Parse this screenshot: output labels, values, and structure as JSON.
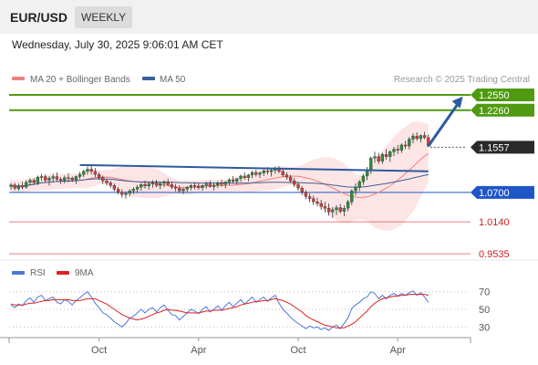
{
  "header": {
    "symbol": "EUR/USD",
    "period": "WEEKLY",
    "datetime": "Wednesday, July 30, 2025 9:06:01 AM CET",
    "credit": "Research © 2025 Trading Central"
  },
  "legend": {
    "ma20": "MA 20 + Bollinger Bands",
    "ma50": "MA 50",
    "rsi": "RSI",
    "rsi_ma": "9MA"
  },
  "colors": {
    "up": "#2e8b3a",
    "down": "#d23b3b",
    "ma20": "#f08080",
    "ma50": "#3a5f99",
    "band_fill": "#fde0e0",
    "target_green": "#4f9a10",
    "support_blue": "#1e56c8",
    "resistance_red": "#e05555",
    "rsi_line": "#4a78d8",
    "rsi_ma": "#e02020",
    "trendline": "#2c5aa0"
  },
  "chart_data": [
    {
      "type": "candlestick",
      "title": "EUR/USD Weekly",
      "y_range": [
        0.945,
        1.262
      ],
      "x_tick_labels": [
        "Oct",
        "Apr",
        "Oct",
        "Apr"
      ],
      "x_tick_bar_index": [
        23,
        49,
        75,
        101
      ],
      "ohlc": [
        [
          1.081,
          1.088,
          1.075,
          1.084
        ],
        [
          1.084,
          1.088,
          1.074,
          1.078
        ],
        [
          1.077,
          1.087,
          1.073,
          1.083
        ],
        [
          1.083,
          1.09,
          1.076,
          1.08
        ],
        [
          1.08,
          1.093,
          1.077,
          1.089
        ],
        [
          1.089,
          1.097,
          1.083,
          1.093
        ],
        [
          1.093,
          1.097,
          1.086,
          1.088
        ],
        [
          1.088,
          1.102,
          1.084,
          1.099
        ],
        [
          1.099,
          1.105,
          1.092,
          1.1
        ],
        [
          1.1,
          1.104,
          1.089,
          1.093
        ],
        [
          1.093,
          1.101,
          1.083,
          1.097
        ],
        [
          1.097,
          1.105,
          1.09,
          1.1
        ],
        [
          1.1,
          1.108,
          1.091,
          1.095
        ],
        [
          1.095,
          1.099,
          1.086,
          1.093
        ],
        [
          1.093,
          1.102,
          1.087,
          1.098
        ],
        [
          1.098,
          1.106,
          1.089,
          1.097
        ],
        [
          1.097,
          1.1,
          1.09,
          1.094
        ],
        [
          1.094,
          1.102,
          1.086,
          1.1
        ],
        [
          1.1,
          1.109,
          1.095,
          1.104
        ],
        [
          1.104,
          1.113,
          1.099,
          1.11
        ],
        [
          1.11,
          1.119,
          1.104,
          1.114
        ],
        [
          1.114,
          1.12,
          1.104,
          1.11
        ],
        [
          1.11,
          1.116,
          1.099,
          1.104
        ],
        [
          1.104,
          1.108,
          1.094,
          1.098
        ],
        [
          1.098,
          1.102,
          1.086,
          1.092
        ],
        [
          1.092,
          1.096,
          1.083,
          1.088
        ],
        [
          1.088,
          1.092,
          1.078,
          1.083
        ],
        [
          1.083,
          1.087,
          1.072,
          1.076
        ],
        [
          1.076,
          1.08,
          1.066,
          1.07
        ],
        [
          1.07,
          1.076,
          1.06,
          1.066
        ],
        [
          1.066,
          1.072,
          1.058,
          1.068
        ],
        [
          1.068,
          1.076,
          1.062,
          1.073
        ],
        [
          1.073,
          1.08,
          1.067,
          1.076
        ],
        [
          1.076,
          1.084,
          1.069,
          1.08
        ],
        [
          1.08,
          1.088,
          1.073,
          1.085
        ],
        [
          1.085,
          1.092,
          1.077,
          1.082
        ],
        [
          1.082,
          1.089,
          1.075,
          1.086
        ],
        [
          1.086,
          1.093,
          1.079,
          1.088
        ],
        [
          1.088,
          1.094,
          1.08,
          1.083
        ],
        [
          1.083,
          1.09,
          1.076,
          1.087
        ],
        [
          1.087,
          1.093,
          1.08,
          1.09
        ],
        [
          1.09,
          1.096,
          1.082,
          1.085
        ],
        [
          1.085,
          1.09,
          1.076,
          1.08
        ],
        [
          1.08,
          1.086,
          1.072,
          1.078
        ],
        [
          1.078,
          1.083,
          1.069,
          1.073
        ],
        [
          1.073,
          1.079,
          1.067,
          1.076
        ],
        [
          1.076,
          1.082,
          1.07,
          1.08
        ],
        [
          1.08,
          1.086,
          1.074,
          1.083
        ],
        [
          1.083,
          1.089,
          1.076,
          1.082
        ],
        [
          1.082,
          1.087,
          1.075,
          1.079
        ],
        [
          1.079,
          1.085,
          1.073,
          1.083
        ],
        [
          1.083,
          1.09,
          1.077,
          1.086
        ],
        [
          1.086,
          1.092,
          1.079,
          1.081
        ],
        [
          1.081,
          1.087,
          1.074,
          1.084
        ],
        [
          1.084,
          1.091,
          1.078,
          1.088
        ],
        [
          1.088,
          1.094,
          1.081,
          1.085
        ],
        [
          1.085,
          1.091,
          1.078,
          1.09
        ],
        [
          1.09,
          1.097,
          1.084,
          1.094
        ],
        [
          1.094,
          1.101,
          1.087,
          1.091
        ],
        [
          1.091,
          1.098,
          1.085,
          1.096
        ],
        [
          1.096,
          1.104,
          1.09,
          1.101
        ],
        [
          1.101,
          1.108,
          1.094,
          1.098
        ],
        [
          1.098,
          1.105,
          1.091,
          1.103
        ],
        [
          1.103,
          1.111,
          1.097,
          1.108
        ],
        [
          1.108,
          1.113,
          1.1,
          1.104
        ],
        [
          1.104,
          1.11,
          1.097,
          1.107
        ],
        [
          1.107,
          1.114,
          1.101,
          1.111
        ],
        [
          1.111,
          1.118,
          1.104,
          1.109
        ],
        [
          1.109,
          1.115,
          1.1,
          1.112
        ],
        [
          1.112,
          1.119,
          1.105,
          1.116
        ],
        [
          1.116,
          1.12,
          1.106,
          1.11
        ],
        [
          1.11,
          1.115,
          1.099,
          1.103
        ],
        [
          1.103,
          1.108,
          1.094,
          1.099
        ],
        [
          1.099,
          1.103,
          1.088,
          1.092
        ],
        [
          1.092,
          1.097,
          1.08,
          1.085
        ],
        [
          1.085,
          1.09,
          1.073,
          1.078
        ],
        [
          1.078,
          1.082,
          1.065,
          1.07
        ],
        [
          1.07,
          1.074,
          1.057,
          1.062
        ],
        [
          1.062,
          1.068,
          1.051,
          1.058
        ],
        [
          1.058,
          1.064,
          1.046,
          1.052
        ],
        [
          1.052,
          1.06,
          1.043,
          1.049
        ],
        [
          1.049,
          1.056,
          1.037,
          1.043
        ],
        [
          1.043,
          1.052,
          1.032,
          1.04
        ],
        [
          1.04,
          1.049,
          1.026,
          1.033
        ],
        [
          1.033,
          1.042,
          1.022,
          1.037
        ],
        [
          1.037,
          1.046,
          1.027,
          1.041
        ],
        [
          1.041,
          1.048,
          1.03,
          1.034
        ],
        [
          1.034,
          1.045,
          1.025,
          1.04
        ],
        [
          1.04,
          1.056,
          1.034,
          1.052
        ],
        [
          1.052,
          1.076,
          1.046,
          1.073
        ],
        [
          1.073,
          1.087,
          1.064,
          1.08
        ],
        [
          1.08,
          1.094,
          1.072,
          1.09
        ],
        [
          1.09,
          1.105,
          1.084,
          1.101
        ],
        [
          1.101,
          1.118,
          1.093,
          1.113
        ],
        [
          1.113,
          1.138,
          1.105,
          1.135
        ],
        [
          1.135,
          1.147,
          1.126,
          1.138
        ],
        [
          1.138,
          1.145,
          1.124,
          1.129
        ],
        [
          1.129,
          1.145,
          1.124,
          1.142
        ],
        [
          1.142,
          1.152,
          1.132,
          1.138
        ],
        [
          1.138,
          1.15,
          1.128,
          1.147
        ],
        [
          1.147,
          1.157,
          1.139,
          1.152
        ],
        [
          1.152,
          1.16,
          1.143,
          1.15
        ],
        [
          1.15,
          1.163,
          1.145,
          1.16
        ],
        [
          1.16,
          1.168,
          1.152,
          1.158
        ],
        [
          1.158,
          1.175,
          1.152,
          1.171
        ],
        [
          1.171,
          1.182,
          1.163,
          1.177
        ],
        [
          1.177,
          1.184,
          1.168,
          1.172
        ],
        [
          1.172,
          1.18,
          1.165,
          1.178
        ],
        [
          1.178,
          1.185,
          1.171,
          1.174
        ],
        [
          1.174,
          1.18,
          1.156,
          1.158
        ]
      ],
      "levels": [
        {
          "value": 1.255,
          "label": "1.2550",
          "kind": "target"
        },
        {
          "value": 1.226,
          "label": "1.2260",
          "kind": "target"
        },
        {
          "value": 1.1557,
          "label": "1.1557",
          "kind": "current"
        },
        {
          "value": 1.07,
          "label": "1.0700",
          "kind": "pivot"
        },
        {
          "value": 1.014,
          "label": "1.0140",
          "kind": "support"
        },
        {
          "value": 0.9535,
          "label": "0.9535",
          "kind": "support"
        }
      ],
      "trendlines": [
        {
          "from": [
            18,
            1.122
          ],
          "to": [
            109,
            1.11
          ]
        },
        {
          "from": [
            0,
            1.073
          ],
          "to": [
            109,
            1.073
          ]
        }
      ],
      "projection_arrow": {
        "from": [
          109,
          1.158
        ],
        "to": [
          118,
          1.252
        ]
      },
      "grid": false,
      "legend_position": "top-left"
    },
    {
      "type": "line",
      "title": "RSI",
      "y_range": [
        22,
        78
      ],
      "y_ticks": [
        70,
        50,
        30
      ],
      "series": [
        {
          "name": "RSI",
          "values": [
            55,
            52,
            56,
            54,
            60,
            63,
            58,
            64,
            66,
            60,
            62,
            64,
            58,
            56,
            61,
            59,
            55,
            60,
            63,
            67,
            70,
            64,
            57,
            52,
            46,
            44,
            40,
            36,
            33,
            30,
            34,
            40,
            42,
            46,
            50,
            46,
            50,
            52,
            47,
            52,
            55,
            49,
            44,
            43,
            38,
            42,
            46,
            50,
            48,
            45,
            50,
            53,
            47,
            50,
            54,
            49,
            54,
            58,
            53,
            57,
            61,
            56,
            60,
            64,
            58,
            61,
            64,
            59,
            63,
            66,
            57,
            50,
            46,
            41,
            37,
            34,
            31,
            28,
            31,
            29,
            30,
            27,
            29,
            26,
            30,
            32,
            28,
            34,
            40,
            51,
            55,
            58,
            62,
            64,
            70,
            68,
            62,
            66,
            62,
            66,
            68,
            65,
            68,
            66,
            69,
            71,
            66,
            69,
            64,
            58
          ]
        },
        {
          "name": "9MA",
          "values": [
            56,
            55,
            55,
            55,
            56,
            57,
            57,
            58,
            59,
            60,
            60,
            61,
            61,
            61,
            61,
            61,
            60,
            60,
            60,
            61,
            62,
            62,
            62,
            60,
            58,
            56,
            53,
            50,
            47,
            44,
            42,
            40,
            39,
            38,
            39,
            40,
            42,
            44,
            46,
            47,
            49,
            50,
            49,
            49,
            48,
            47,
            46,
            46,
            46,
            46,
            47,
            48,
            48,
            49,
            49,
            49,
            50,
            51,
            52,
            53,
            55,
            56,
            57,
            58,
            59,
            59,
            60,
            60,
            61,
            62,
            61,
            60,
            58,
            56,
            53,
            50,
            47,
            43,
            40,
            38,
            36,
            34,
            32,
            31,
            30,
            29,
            29,
            29,
            31,
            33,
            36,
            40,
            44,
            48,
            53,
            57,
            60,
            62,
            63,
            64,
            65,
            65,
            66,
            66,
            67,
            67,
            67,
            67,
            67,
            66
          ]
        }
      ],
      "legend_position": "top-left"
    }
  ]
}
